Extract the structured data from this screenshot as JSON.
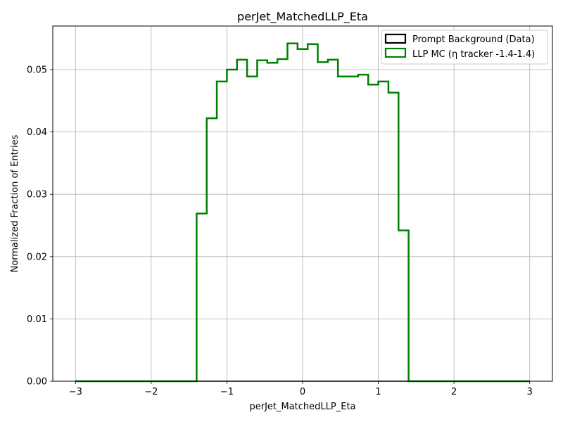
{
  "chart_data": {
    "type": "histogram-step",
    "title": "perJet_MatchedLLP_Eta",
    "xlabel": "perJet_MatchedLLP_Eta",
    "ylabel": "Normalized Fraction of Entries",
    "xlim": [
      -3.3,
      3.3
    ],
    "ylim": [
      0,
      0.057
    ],
    "x_ticks": [
      -3,
      -2,
      -1,
      0,
      1,
      2,
      3
    ],
    "x_tick_labels": [
      "−3",
      "−2",
      "−1",
      "0",
      "1",
      "2",
      "3"
    ],
    "y_ticks": [
      0.0,
      0.01,
      0.02,
      0.03,
      0.04,
      0.05
    ],
    "y_tick_labels": [
      "0.00",
      "0.01",
      "0.02",
      "0.03",
      "0.04",
      "0.05"
    ],
    "grid": true,
    "legend_position": "top-right",
    "bin_edges": [
      -3.0,
      -2.8667,
      -2.7333,
      -2.6,
      -2.4667,
      -2.3333,
      -2.2,
      -2.0667,
      -1.9333,
      -1.8,
      -1.6667,
      -1.5333,
      -1.4,
      -1.2667,
      -1.1333,
      -1.0,
      -0.8667,
      -0.7333,
      -0.6,
      -0.4667,
      -0.3333,
      -0.2,
      -0.0667,
      0.0667,
      0.2,
      0.3333,
      0.4667,
      0.6,
      0.7333,
      0.8667,
      1.0,
      1.1333,
      1.2667,
      1.4,
      1.5333,
      1.6667,
      1.8,
      1.9333,
      2.0667,
      2.2,
      2.3333,
      2.4667,
      2.6,
      2.7333,
      2.8667,
      3.0
    ],
    "series": [
      {
        "name": "Prompt Background (Data)",
        "color": "#000000",
        "values": [
          0,
          0,
          0,
          0,
          0,
          0,
          0,
          0,
          0,
          0,
          0,
          0,
          0,
          0,
          0,
          0,
          0,
          0,
          0,
          0,
          0,
          0,
          0,
          0,
          0,
          0,
          0,
          0,
          0,
          0,
          0,
          0,
          0,
          0,
          0,
          0,
          0,
          0,
          0,
          0,
          0,
          0,
          0,
          0,
          0
        ]
      },
      {
        "name": "LLP MC (η tracker -1.4-1.4)",
        "color": "#008000",
        "values": [
          0,
          0,
          0,
          0,
          0,
          0,
          0,
          0,
          0,
          0,
          0,
          0,
          0.0269,
          0.0422,
          0.0481,
          0.05,
          0.0516,
          0.0489,
          0.0515,
          0.0511,
          0.0517,
          0.0542,
          0.0533,
          0.0541,
          0.0512,
          0.0516,
          0.0489,
          0.0489,
          0.0492,
          0.0476,
          0.0481,
          0.0463,
          0.0242,
          0,
          0,
          0,
          0,
          0,
          0,
          0,
          0,
          0,
          0,
          0,
          0
        ]
      }
    ]
  }
}
